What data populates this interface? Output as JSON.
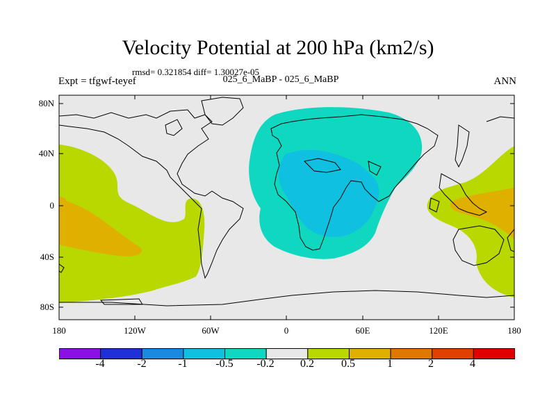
{
  "title": "Velocity Potential at 200 hPa (km2/s)",
  "stats": "rmsd= 0.321854  diff= 1.30027e-05",
  "experiment": "Expt = tfgwf-teyef",
  "comparison": "025_6_MaBP - 025_6_MaBP",
  "season": "ANN",
  "lat_labels": [
    "80N",
    "40N",
    "0",
    "40S",
    "80S"
  ],
  "lon_labels": [
    "180",
    "120W",
    "60W",
    "0",
    "60E",
    "120E",
    "180"
  ],
  "colorbar": {
    "levels": [
      "-4",
      "-2",
      "-1",
      "-0.5",
      "-0.2",
      "0.2",
      "0.5",
      "1",
      "2",
      "4"
    ],
    "colors": [
      "#8a10e6",
      "#2030d8",
      "#1a8ae0",
      "#10c0e0",
      "#10d8c0",
      "#e8e8e8",
      "#b8d800",
      "#e0b000",
      "#e07800",
      "#e04000",
      "#e00000"
    ]
  }
}
